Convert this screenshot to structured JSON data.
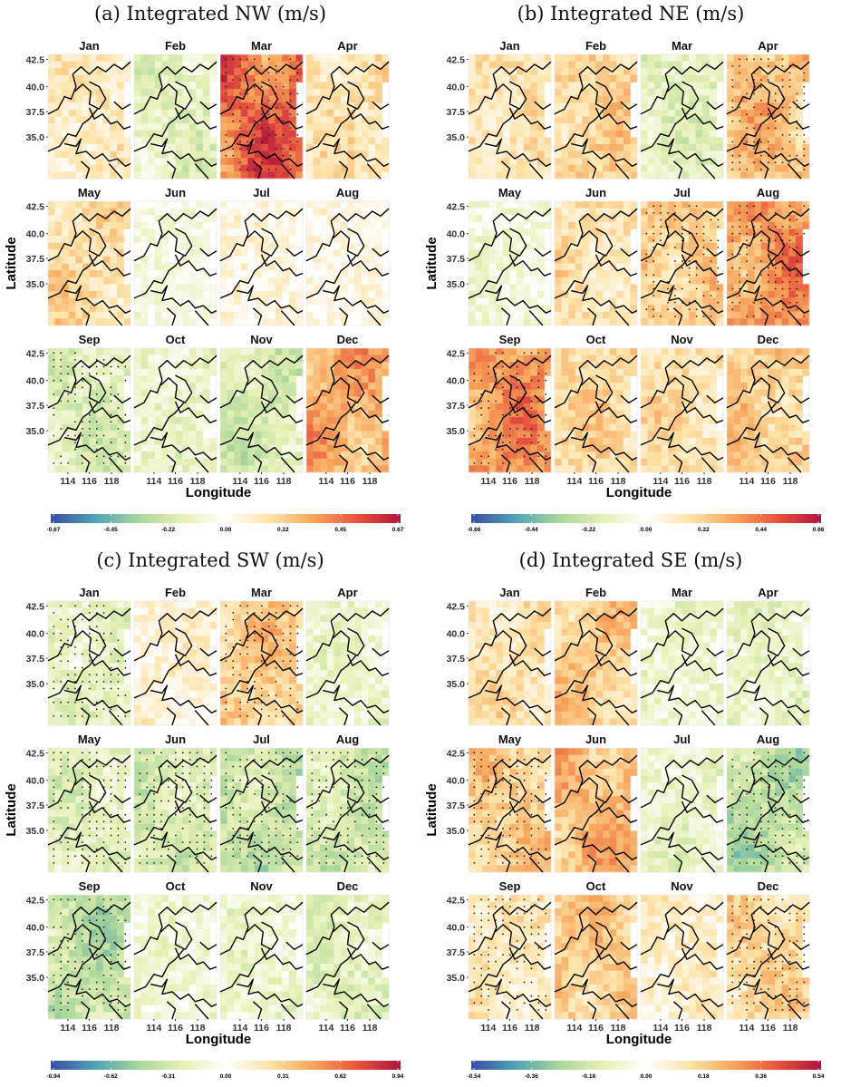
{
  "colors": {
    "scale": [
      "#3b4ba8",
      "#4fa3b3",
      "#a8d69a",
      "#e6f0b4",
      "#ffffff",
      "#fde3a7",
      "#f7a55b",
      "#e8543e",
      "#b0133d"
    ],
    "boundary": "#000000",
    "panel_background": "#ffffff"
  },
  "chart_data": [
    {
      "type": "heatmap",
      "title": "(a) Integrated NW (m/s)",
      "xlabel": "Longitude",
      "ylabel": "Latitude",
      "x_ticks": [
        "114",
        "116",
        "118"
      ],
      "y_ticks": [
        "42.5",
        "40.0",
        "37.5",
        "35.0"
      ],
      "months": [
        "Jan",
        "Feb",
        "Mar",
        "Apr",
        "May",
        "Jun",
        "Jul",
        "Aug",
        "Sep",
        "Oct",
        "Nov",
        "Dec"
      ],
      "colorbar_ticks": [
        "-0.67",
        "-0.45",
        "-0.22",
        "0.00",
        "0.22",
        "0.45",
        "0.67"
      ],
      "limit": 0.67,
      "month_mean_anomaly": [
        0.12,
        -0.15,
        0.45,
        0.15,
        0.18,
        -0.05,
        0.05,
        0.04,
        -0.18,
        -0.12,
        -0.2,
        0.3
      ],
      "month_significance": [
        0,
        0,
        1,
        0,
        0,
        0,
        0,
        0,
        1,
        0,
        0,
        0
      ]
    },
    {
      "type": "heatmap",
      "title": "(b) Integrated NE (m/s)",
      "xlabel": "Longitude",
      "ylabel": "Latitude",
      "x_ticks": [
        "114",
        "116",
        "118"
      ],
      "y_ticks": [
        "42.5",
        "40.0",
        "37.5",
        "35.0"
      ],
      "months": [
        "Jan",
        "Feb",
        "Mar",
        "Apr",
        "May",
        "Jun",
        "Jul",
        "Aug",
        "Sep",
        "Oct",
        "Nov",
        "Dec"
      ],
      "colorbar_ticks": [
        "-0.66",
        "-0.44",
        "-0.22",
        "0.00",
        "0.22",
        "0.44",
        "0.66"
      ],
      "limit": 0.66,
      "month_mean_anomaly": [
        0.15,
        0.2,
        -0.15,
        0.25,
        -0.08,
        0.15,
        0.22,
        0.35,
        0.35,
        0.18,
        0.16,
        0.22
      ],
      "month_significance": [
        0,
        0,
        0,
        1,
        0,
        0,
        1,
        1,
        1,
        0,
        0,
        0
      ]
    },
    {
      "type": "heatmap",
      "title": "(c) Integrated SW (m/s)",
      "xlabel": "Longitude",
      "ylabel": "Latitude",
      "x_ticks": [
        "114",
        "116",
        "118"
      ],
      "y_ticks": [
        "42.5",
        "40.0",
        "37.5",
        "35.0"
      ],
      "months": [
        "Jan",
        "Feb",
        "Mar",
        "Apr",
        "May",
        "Jun",
        "Jul",
        "Aug",
        "Sep",
        "Oct",
        "Nov",
        "Dec"
      ],
      "colorbar_ticks": [
        "-0.94",
        "-0.62",
        "-0.31",
        "0.00",
        "0.31",
        "0.62",
        "0.94"
      ],
      "limit": 0.94,
      "month_mean_anomaly": [
        -0.2,
        0.12,
        0.3,
        -0.15,
        -0.22,
        -0.28,
        -0.35,
        -0.3,
        -0.35,
        -0.12,
        -0.15,
        -0.22
      ],
      "month_significance": [
        1,
        0,
        1,
        0,
        1,
        1,
        1,
        1,
        1,
        0,
        0,
        0
      ]
    },
    {
      "type": "heatmap",
      "title": "(d) Integrated SE (m/s)",
      "xlabel": "Longitude",
      "ylabel": "Latitude",
      "x_ticks": [
        "114",
        "116",
        "118"
      ],
      "y_ticks": [
        "42.5",
        "40.0",
        "37.5",
        "35.0"
      ],
      "months": [
        "Jan",
        "Feb",
        "Mar",
        "Apr",
        "May",
        "Jun",
        "Jul",
        "Aug",
        "Sep",
        "Oct",
        "Nov",
        "Dec"
      ],
      "colorbar_ticks": [
        "-0.54",
        "-0.36",
        "-0.18",
        "0.00",
        "0.18",
        "0.36",
        "0.54"
      ],
      "limit": 0.54,
      "month_mean_anomaly": [
        0.12,
        0.18,
        -0.08,
        -0.1,
        0.18,
        0.22,
        -0.1,
        -0.22,
        0.1,
        0.18,
        0.08,
        0.15
      ],
      "month_significance": [
        0,
        0,
        0,
        0,
        1,
        0,
        0,
        1,
        1,
        0,
        0,
        1
      ]
    }
  ]
}
